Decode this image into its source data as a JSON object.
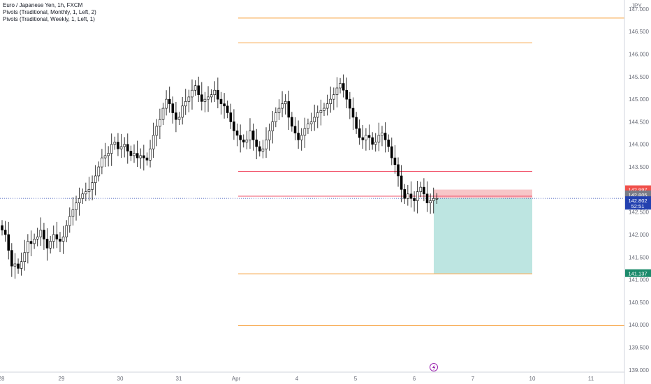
{
  "legend": {
    "symbol": "Euro / Japanese Yen, 1h, FXCM",
    "indicator1": "Pivots (Traditional, Monthly, 1, Left, 2)",
    "indicator2": "Pivots (Traditional, Weekly, 1, Left, 1)"
  },
  "price_axis": {
    "currency": "JPY",
    "ticks": [
      "147.000",
      "146.500",
      "146.000",
      "145.500",
      "145.000",
      "144.500",
      "144.000",
      "143.500",
      "143.000",
      "142.500",
      "142.000",
      "141.500",
      "141.000",
      "140.500",
      "140.000",
      "139.500",
      "139.000"
    ],
    "tick_values": [
      147.0,
      146.5,
      146.0,
      145.5,
      145.0,
      144.5,
      144.0,
      143.5,
      143.0,
      142.5,
      142.0,
      141.5,
      141.0,
      140.5,
      140.0,
      139.5,
      139.0
    ],
    "tags": {
      "stop": "142.997",
      "entry": "142.805",
      "current": "142.802",
      "countdown": "52:51",
      "target": "141.137"
    }
  },
  "time_axis": {
    "labels": [
      "28",
      "29",
      "30",
      "31",
      "Apr",
      "4",
      "5",
      "6",
      "7",
      "10",
      "11"
    ]
  },
  "colors": {
    "up": "#ffffff",
    "down": "#000000",
    "wick": "#000000",
    "pivot_orange": "#f7a13d",
    "pivot_red": "#f1536b",
    "stop_zone": "#f7c6c8",
    "profit_zone": "#bde5e1",
    "tag_red": "#f0504b",
    "tag_gray": "#787b86",
    "tag_blue": "#2341b0",
    "tag_green": "#1b8a6b",
    "grid": "#eceff2",
    "axis_text": "#6a6d78"
  },
  "chart_data": {
    "type": "candlestick",
    "series": [
      {
        "name": "Pivots (Traditional, Monthly, 1, Left, 2)",
        "values": [
          146.8
        ]
      },
      {
        "name": "Pivots (Traditional, Weekly, 1, Left, 1)",
        "values": [
          146.25,
          143.4,
          142.85,
          141.13,
          139.98
        ]
      }
    ],
    "pivot_levels": [
      {
        "value": 146.8,
        "color": "orange",
        "from": "Apr",
        "to": "end"
      },
      {
        "value": 146.25,
        "color": "orange",
        "from": "Apr",
        "to": "10"
      },
      {
        "value": 143.4,
        "color": "red",
        "from": "Apr",
        "to": "10"
      },
      {
        "value": 142.85,
        "color": "red",
        "from": "Apr",
        "to": "10"
      },
      {
        "value": 141.13,
        "color": "orange",
        "from": "Apr",
        "to": "10"
      },
      {
        "value": 139.98,
        "color": "orange",
        "from": "Apr",
        "to": "end"
      }
    ],
    "position": {
      "type": "short",
      "entry": 142.805,
      "stop": 142.997,
      "target": 141.137
    },
    "current_price": 142.802,
    "ylim": [
      138.95,
      147.2
    ],
    "closes": [
      142.1,
      142.0,
      141.65,
      141.3,
      141.35,
      141.25,
      141.4,
      141.6,
      141.85,
      141.8,
      141.9,
      141.95,
      142.1,
      141.9,
      141.7,
      141.85,
      142.0,
      141.9,
      141.85,
      141.95,
      142.2,
      142.4,
      142.55,
      142.7,
      142.8,
      142.9,
      142.95,
      143.0,
      143.15,
      143.3,
      143.5,
      143.7,
      143.75,
      143.8,
      144.0,
      144.05,
      143.9,
      143.95,
      144.0,
      143.85,
      143.75,
      143.8,
      143.7,
      143.75,
      143.7,
      143.65,
      143.9,
      144.2,
      144.4,
      144.55,
      144.8,
      145.0,
      144.9,
      144.7,
      144.55,
      144.6,
      144.85,
      144.95,
      145.05,
      145.2,
      145.3,
      145.1,
      144.95,
      145.0,
      145.05,
      145.1,
      145.2,
      145.0,
      144.9,
      144.85,
      144.7,
      144.5,
      144.3,
      144.2,
      144.1,
      144.05,
      144.1,
      144.3,
      144.1,
      143.95,
      143.85,
      143.9,
      144.1,
      144.3,
      144.5,
      144.7,
      144.8,
      144.9,
      144.95,
      144.6,
      144.4,
      144.25,
      144.1,
      144.2,
      144.35,
      144.45,
      144.5,
      144.6,
      144.7,
      144.75,
      144.8,
      144.9,
      145.0,
      145.1,
      145.25,
      145.35,
      145.2,
      145.0,
      144.8,
      144.6,
      144.35,
      144.15,
      144.1,
      144.2,
      144.15,
      144.0,
      144.05,
      144.2,
      144.25,
      144.1,
      143.95,
      143.7,
      143.55,
      143.3,
      143.0,
      142.8,
      142.9,
      142.8,
      142.75,
      142.95,
      143.05,
      142.9,
      142.7,
      142.75,
      142.8,
      142.8
    ]
  }
}
